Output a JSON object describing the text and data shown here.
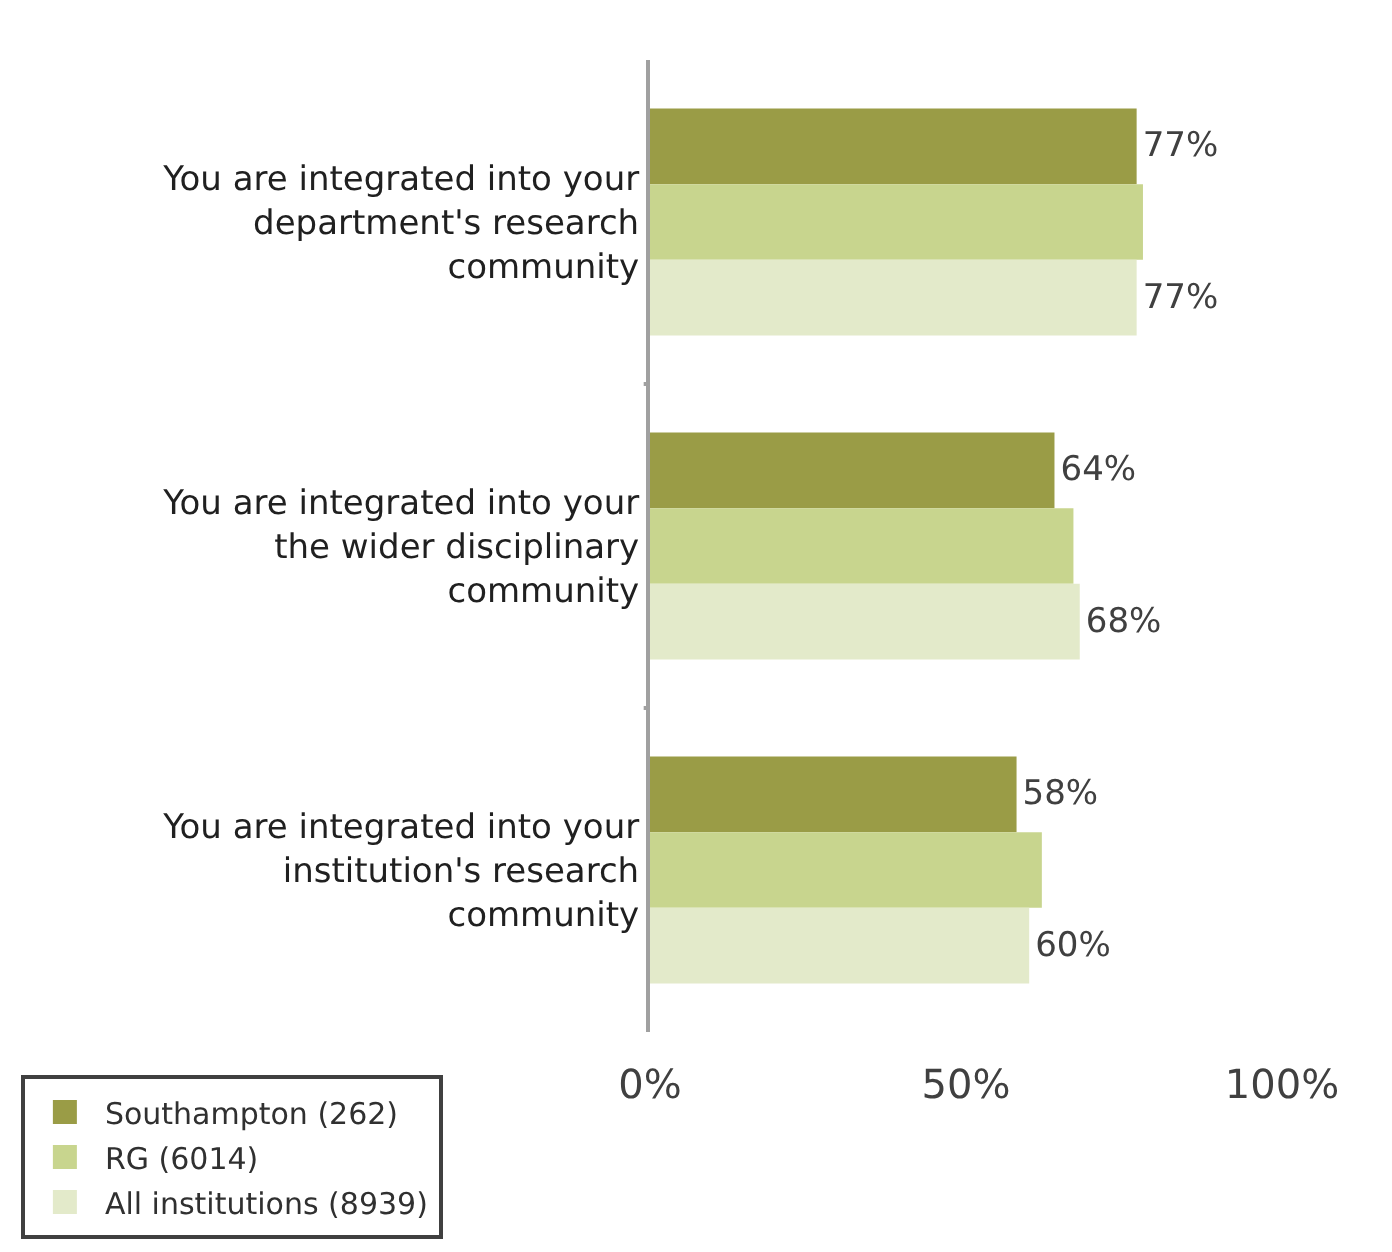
{
  "chart_data": {
    "type": "bar",
    "orientation": "horizontal",
    "categories": [
      "You are integrated into your department's research community",
      "You are integrated into your the wider disciplinary community",
      "You are integrated into your institution's research community"
    ],
    "series": [
      {
        "name": "Southampton (262)",
        "color": "#9a9c46",
        "values": [
          77,
          64,
          58
        ],
        "value_labels": [
          "77%",
          "64%",
          "58%"
        ]
      },
      {
        "name": "RG (6014)",
        "color": "#c8d58e",
        "values": [
          78,
          67,
          62
        ]
      },
      {
        "name": "All institutions (8939)",
        "color": "#e3eaca",
        "values": [
          77,
          68,
          60
        ],
        "value_labels": [
          "77%",
          "68%",
          "60%"
        ]
      }
    ],
    "xlim": [
      0,
      100
    ],
    "xticks": [
      {
        "value": 0,
        "label": "0%"
      },
      {
        "value": 50,
        "label": "50%"
      },
      {
        "value": 100,
        "label": "100%"
      }
    ],
    "legend": "bottom"
  }
}
